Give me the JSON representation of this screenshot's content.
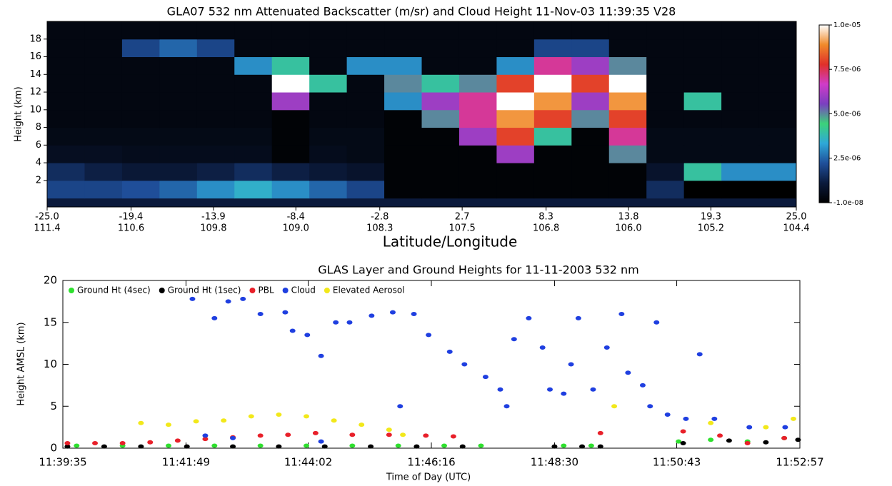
{
  "chart_data": [
    {
      "type": "heatmap",
      "title": "GLA07 532 nm Attenuated Backscatter (m/sr) and Cloud Height 11-Nov-03 11:39:35  V28",
      "xlabel": "Latitude/Longitude",
      "ylabel": "Height (km)",
      "xlim": [
        -25,
        25
      ],
      "ylim": [
        -1,
        20
      ],
      "xticks": [
        {
          "value": -25,
          "label": "-25.0"
        },
        -19.4,
        -13.9,
        -8.4,
        -2.8,
        2.7,
        8.3,
        13.8,
        19.3,
        {
          "value": 25,
          "label": "25.0"
        }
      ],
      "lon_labels": [
        "111.4",
        "110.6",
        "109.8",
        "109.0",
        "108.3",
        "107.5",
        "106.8",
        "106.0",
        "105.2",
        "104.4"
      ],
      "yticks": [
        2,
        4,
        6,
        8,
        10,
        12,
        14,
        16,
        18
      ],
      "x_edges": [
        -25,
        -22.5,
        -20,
        -17.5,
        -15,
        -12.5,
        -10,
        -7.5,
        -5,
        -2.5,
        0,
        2.5,
        5,
        7.5,
        10,
        12.5,
        15,
        17.5,
        20,
        22.5,
        25
      ],
      "y_edges": [
        0,
        2,
        4,
        6,
        8,
        10,
        12,
        14,
        16,
        18,
        20
      ],
      "z": [
        [
          2e-06,
          2e-06,
          2.2e-06,
          2.5e-06,
          3e-06,
          3.5e-06,
          3e-06,
          2.5e-06,
          2e-06,
          1e-07,
          1e-07,
          1e-07,
          1e-07,
          1e-07,
          1e-07,
          1e-07,
          1.5e-06,
          -1e-08,
          -1e-08,
          -1e-08
        ],
        [
          1.5e-06,
          1.2e-06,
          1e-06,
          1e-06,
          1.2e-06,
          1.5e-06,
          1.2e-06,
          1e-06,
          8e-07,
          1e-07,
          1e-07,
          1e-07,
          1e-07,
          1e-07,
          1e-07,
          1e-07,
          8e-07,
          4e-06,
          3e-06,
          3e-06
        ],
        [
          6e-07,
          6e-07,
          5e-07,
          5e-07,
          5e-07,
          5e-07,
          1e-07,
          5e-07,
          4e-07,
          1e-07,
          1e-07,
          1e-07,
          6e-06,
          1e-07,
          1e-07,
          5e-06,
          4e-07,
          4e-07,
          4e-07,
          4e-07
        ],
        [
          4e-07,
          4e-07,
          4e-07,
          4e-07,
          4e-07,
          4e-07,
          1e-07,
          4e-07,
          4e-07,
          1e-07,
          1e-07,
          6e-06,
          8e-06,
          4e-06,
          1e-07,
          7e-06,
          4e-07,
          4e-07,
          4e-07,
          4e-07
        ],
        [
          3e-07,
          3e-07,
          3e-07,
          3e-07,
          3e-07,
          3e-07,
          1e-07,
          3e-07,
          3e-07,
          1e-07,
          5e-06,
          7e-06,
          9e-06,
          8e-06,
          5e-06,
          8e-06,
          3e-07,
          3e-07,
          3e-07,
          3e-07
        ],
        [
          3e-07,
          3e-07,
          3e-07,
          3e-07,
          3e-07,
          3e-07,
          6e-06,
          3e-07,
          3e-07,
          3e-06,
          6e-06,
          7e-06,
          1e-05,
          9e-06,
          6e-06,
          9e-06,
          3e-07,
          4e-06,
          3e-07,
          3e-07
        ],
        [
          3e-07,
          3e-07,
          3e-07,
          3e-07,
          3e-07,
          3e-07,
          1e-05,
          4e-06,
          3e-07,
          5e-06,
          4e-06,
          5e-06,
          8e-06,
          1e-05,
          8e-06,
          1e-05,
          3e-07,
          3e-07,
          3e-07,
          3e-07
        ],
        [
          3e-07,
          3e-07,
          3e-07,
          3e-07,
          3e-07,
          3e-06,
          4e-06,
          3e-07,
          3e-06,
          3e-06,
          3e-07,
          3e-07,
          3e-06,
          7e-06,
          6e-06,
          5e-06,
          3e-07,
          3e-07,
          3e-07,
          3e-07
        ],
        [
          3e-07,
          3e-07,
          2e-06,
          2.5e-06,
          2e-06,
          3e-07,
          3e-07,
          3e-07,
          3e-07,
          3e-07,
          3e-07,
          3e-07,
          3e-07,
          2e-06,
          2e-06,
          3e-07,
          3e-07,
          3e-07,
          3e-07,
          3e-07
        ],
        [
          3e-07,
          3e-07,
          3e-07,
          3e-07,
          3e-07,
          3e-07,
          3e-07,
          3e-07,
          3e-07,
          3e-07,
          3e-07,
          3e-07,
          3e-07,
          3e-07,
          3e-07,
          3e-07,
          3e-07,
          3e-07,
          3e-07,
          3e-07
        ]
      ],
      "zlim": [
        -1e-08,
        1e-05
      ],
      "zticks": [
        {
          "value": 1e-05,
          "label": "1.0e-05"
        },
        {
          "value": 7.5e-06,
          "label": "7.5e-06"
        },
        {
          "value": 5e-06,
          "label": "5.0e-06"
        },
        {
          "value": 2.5e-06,
          "label": "2.5e-06"
        },
        {
          "value": -1e-08,
          "label": "-1.0e-08"
        }
      ],
      "colorscale": [
        "#000000",
        "#0b1a3c",
        "#1f4f9a",
        "#2fa8d8",
        "#3cd27a",
        "#7a3fc0",
        "#d03cc8",
        "#e0302a",
        "#f08a2a",
        "#ffffff"
      ]
    },
    {
      "type": "scatter",
      "title": "GLAS Layer and Ground Heights for 11-11-2003 532 nm",
      "xlabel": "Time of Day (UTC)",
      "ylabel": "Height AMSL (km)",
      "xlim": [
        41975,
        42777
      ],
      "ylim": [
        0,
        20
      ],
      "xticks": [
        {
          "value": 41975,
          "label": "11:39:35"
        },
        {
          "value": 42109,
          "label": "11:41:49"
        },
        {
          "value": 42242,
          "label": "11:44:02"
        },
        {
          "value": 42376,
          "label": "11:46:16"
        },
        {
          "value": 42510,
          "label": "11:48:30"
        },
        {
          "value": 42643,
          "label": "11:50:43"
        },
        {
          "value": 42777,
          "label": "11:52:57"
        }
      ],
      "yticks": [
        0,
        5,
        10,
        15,
        20
      ],
      "series": [
        {
          "name": "Ground Ht (4sec)",
          "color": "#2ee02e",
          "x": [
            41990,
            42040,
            42090,
            42140,
            42190,
            42240,
            42290,
            42340,
            42390,
            42430,
            42520,
            42550,
            42645,
            42680,
            42720,
            42760
          ],
          "y": [
            0.3,
            0.3,
            0.3,
            0.3,
            0.3,
            0.3,
            0.3,
            0.3,
            0.3,
            0.3,
            0.3,
            0.3,
            0.8,
            1.0,
            0.8,
            1.2
          ]
        },
        {
          "name": "Ground Ht (1sec)",
          "color": "#000000",
          "x": [
            41980,
            42020,
            42060,
            42110,
            42160,
            42210,
            42260,
            42310,
            42360,
            42410,
            42510,
            42540,
            42560,
            42650,
            42700,
            42740,
            42775
          ],
          "y": [
            0.2,
            0.2,
            0.2,
            0.2,
            0.2,
            0.2,
            0.2,
            0.2,
            0.2,
            0.2,
            0.2,
            0.2,
            0.2,
            0.6,
            0.9,
            0.7,
            1.0
          ]
        },
        {
          "name": "PBL",
          "color": "#e8202a",
          "x": [
            41980,
            42010,
            42040,
            42070,
            42100,
            42130,
            42160,
            42190,
            42220,
            42250,
            42290,
            42330,
            42370,
            42400,
            42560,
            42650,
            42690,
            42720,
            42760
          ],
          "y": [
            0.6,
            0.6,
            0.6,
            0.7,
            0.9,
            1.1,
            1.3,
            1.5,
            1.6,
            1.8,
            1.6,
            1.6,
            1.5,
            1.4,
            1.8,
            2.0,
            1.5,
            0.6,
            1.2
          ]
        },
        {
          "name": "Cloud",
          "color": "#1f3fe0",
          "x": [
            42116,
            42140,
            42155,
            42171,
            42190,
            42217,
            42225,
            42241,
            42256,
            42272,
            42287,
            42311,
            42334,
            42342,
            42357,
            42373,
            42396,
            42412,
            42435,
            42451,
            42458,
            42466,
            42482,
            42497,
            42505,
            42520,
            42528,
            42536,
            42552,
            42567,
            42583,
            42590,
            42606,
            42614,
            42621,
            42633,
            42653,
            42668,
            42684,
            42722,
            42761,
            42130,
            42160,
            42256
          ],
          "y": [
            17.8,
            15.5,
            17.5,
            17.8,
            16.0,
            16.2,
            14.0,
            13.5,
            11.0,
            15.0,
            15.0,
            15.8,
            16.2,
            5.0,
            16.0,
            13.5,
            11.5,
            10.0,
            8.5,
            7.0,
            5.0,
            13.0,
            15.5,
            12.0,
            7.0,
            6.5,
            10.0,
            15.5,
            7.0,
            12.0,
            16.0,
            9.0,
            7.5,
            5.0,
            15.0,
            4.0,
            3.5,
            11.2,
            3.5,
            2.5,
            2.5,
            1.5,
            1.2,
            0.8
          ]
        },
        {
          "name": "Elevated Aerosol",
          "color": "#f2e81a",
          "x": [
            42060,
            42090,
            42120,
            42150,
            42180,
            42210,
            42240,
            42270,
            42300,
            42330,
            42345,
            42575,
            42680,
            42740,
            42770
          ],
          "y": [
            3.0,
            2.8,
            3.2,
            3.3,
            3.8,
            4.0,
            3.8,
            3.3,
            2.8,
            2.2,
            1.6,
            5.0,
            3.0,
            2.5,
            3.5
          ]
        }
      ]
    }
  ]
}
